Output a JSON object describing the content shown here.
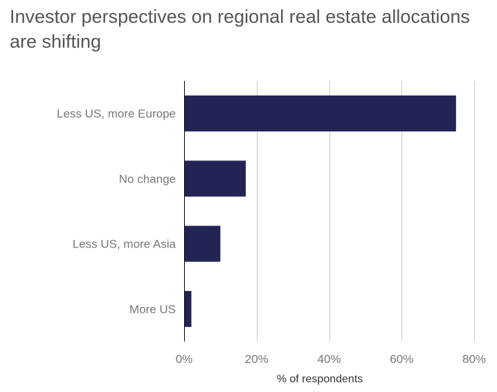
{
  "chart_data": {
    "type": "bar",
    "orientation": "horizontal",
    "title": "Investor perspectives on regional real estate allocations are shifting",
    "categories": [
      "Less US, more Europe",
      "No change",
      "Less US, more Asia",
      "More US"
    ],
    "values": [
      75,
      17,
      10,
      2
    ],
    "xlabel": "% of respondents",
    "ylabel": "",
    "xlim": [
      0,
      80
    ],
    "xticks": [
      0,
      20,
      40,
      60,
      80
    ],
    "xtick_labels": [
      "0%",
      "20%",
      "40%",
      "60%",
      "80%"
    ],
    "grid": "vertical",
    "legend": "none",
    "bar_color": "#232455"
  }
}
